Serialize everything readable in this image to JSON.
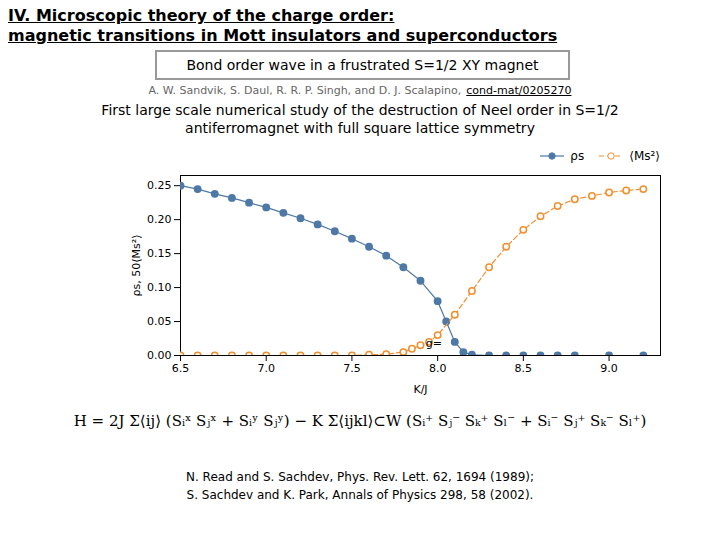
{
  "chart_data": {
    "type": "line",
    "title": "IV. Microscopic theory of the charge order:",
    "subtitle": "magnetic transitions in Mott insulators and superconductors",
    "x_label": "K/J",
    "y_label": "ρs, 50⟨Ms²⟩",
    "xlim": [
      6.5,
      9.3
    ],
    "xticks": [
      6.5,
      {
        "value": 7,
        "label": "7.0"
      },
      7.5,
      {
        "value": 8,
        "label": "8.0"
      },
      8.5,
      {
        "value": 9,
        "label": "9.0"
      }
    ],
    "ylim": [
      0,
      0.265
    ],
    "yticks": [
      {
        "value": 0,
        "label": "0.00"
      },
      {
        "value": 0.05,
        "label": "0.05"
      },
      {
        "value": 0.1,
        "label": "0.10"
      },
      {
        "value": 0.15,
        "label": "0.15"
      },
      {
        "value": 0.2,
        "label": "0.20"
      },
      {
        "value": 0.25,
        "label": "0.25"
      }
    ],
    "grid": false,
    "legend": "upper right",
    "series": [
      {
        "name": "ρs",
        "marker": "circle",
        "line_style": "solid",
        "x": [
          6.5,
          6.6,
          6.7,
          6.8,
          6.9,
          7.0,
          7.1,
          7.2,
          7.3,
          7.4,
          7.5,
          7.6,
          7.7,
          7.8,
          7.9,
          8.0,
          8.05,
          8.1,
          8.15,
          8.2,
          8.3,
          8.4,
          8.5,
          8.6,
          8.7,
          8.8,
          9.0,
          9.2
        ],
        "values": [
          0.25,
          0.245,
          0.238,
          0.232,
          0.225,
          0.218,
          0.21,
          0.202,
          0.193,
          0.183,
          0.172,
          0.16,
          0.147,
          0.13,
          0.11,
          0.08,
          0.05,
          0.02,
          0.005,
          0.001,
          0.0,
          0.0,
          0.0,
          0.0,
          0.0,
          0.0,
          0.0,
          0.0
        ]
      },
      {
        "name": "⟨Ms²⟩",
        "marker": "circle_open",
        "line_style": "dashed",
        "x": [
          6.5,
          6.6,
          6.7,
          6.8,
          6.9,
          7.0,
          7.1,
          7.2,
          7.3,
          7.4,
          7.5,
          7.6,
          7.7,
          7.8,
          7.85,
          7.9,
          7.95,
          8.0,
          8.1,
          8.2,
          8.3,
          8.4,
          8.5,
          8.6,
          8.7,
          8.8,
          8.9,
          9.0,
          9.1,
          9.2
        ],
        "values": [
          0.0,
          0.0,
          0.0,
          0.0,
          0.0,
          0.0,
          0.0,
          0.0,
          0.0,
          0.0,
          0.0,
          0.001,
          0.002,
          0.005,
          0.01,
          0.015,
          0.02,
          0.03,
          0.06,
          0.095,
          0.13,
          0.16,
          0.185,
          0.205,
          0.22,
          0.23,
          0.235,
          0.24,
          0.243,
          0.245
        ]
      }
    ],
    "annotations": [
      {
        "text": "Bond order wave in a frustrated S=1/2 XY magnet"
      },
      {
        "text": "A. W. Sandvik, S. Daul, R. R. P. Singh, and D. J. Scalapino,"
      },
      {
        "text": "cond-mat/0205270"
      },
      {
        "text": "First large scale numerical study of the destruction of Neel order in S=1/2"
      },
      {
        "text": "antiferromagnet with full square lattice symmetry"
      },
      {
        "text": "H = 2J Σ⟨ij⟩ (Sᵢˣ Sⱼˣ + Sᵢʸ Sⱼʸ) − K Σ⟨ijkl⟩⊂W (Sᵢ⁺ Sⱼ⁻ Sₖ⁺ Sₗ⁻ + Sᵢ⁻ Sⱼ⁺ Sₖ⁻ Sₗ⁺)"
      },
      {
        "text": "N. Read and S. Sachdev, Phys. Rev. Lett. 62, 1694 (1989);"
      },
      {
        "text": "S. Sachdev and K. Park, Annals of Physics 298, 58 (2002)."
      },
      {
        "text": "g=",
        "x": 7.93,
        "y": 0.012
      }
    ]
  }
}
